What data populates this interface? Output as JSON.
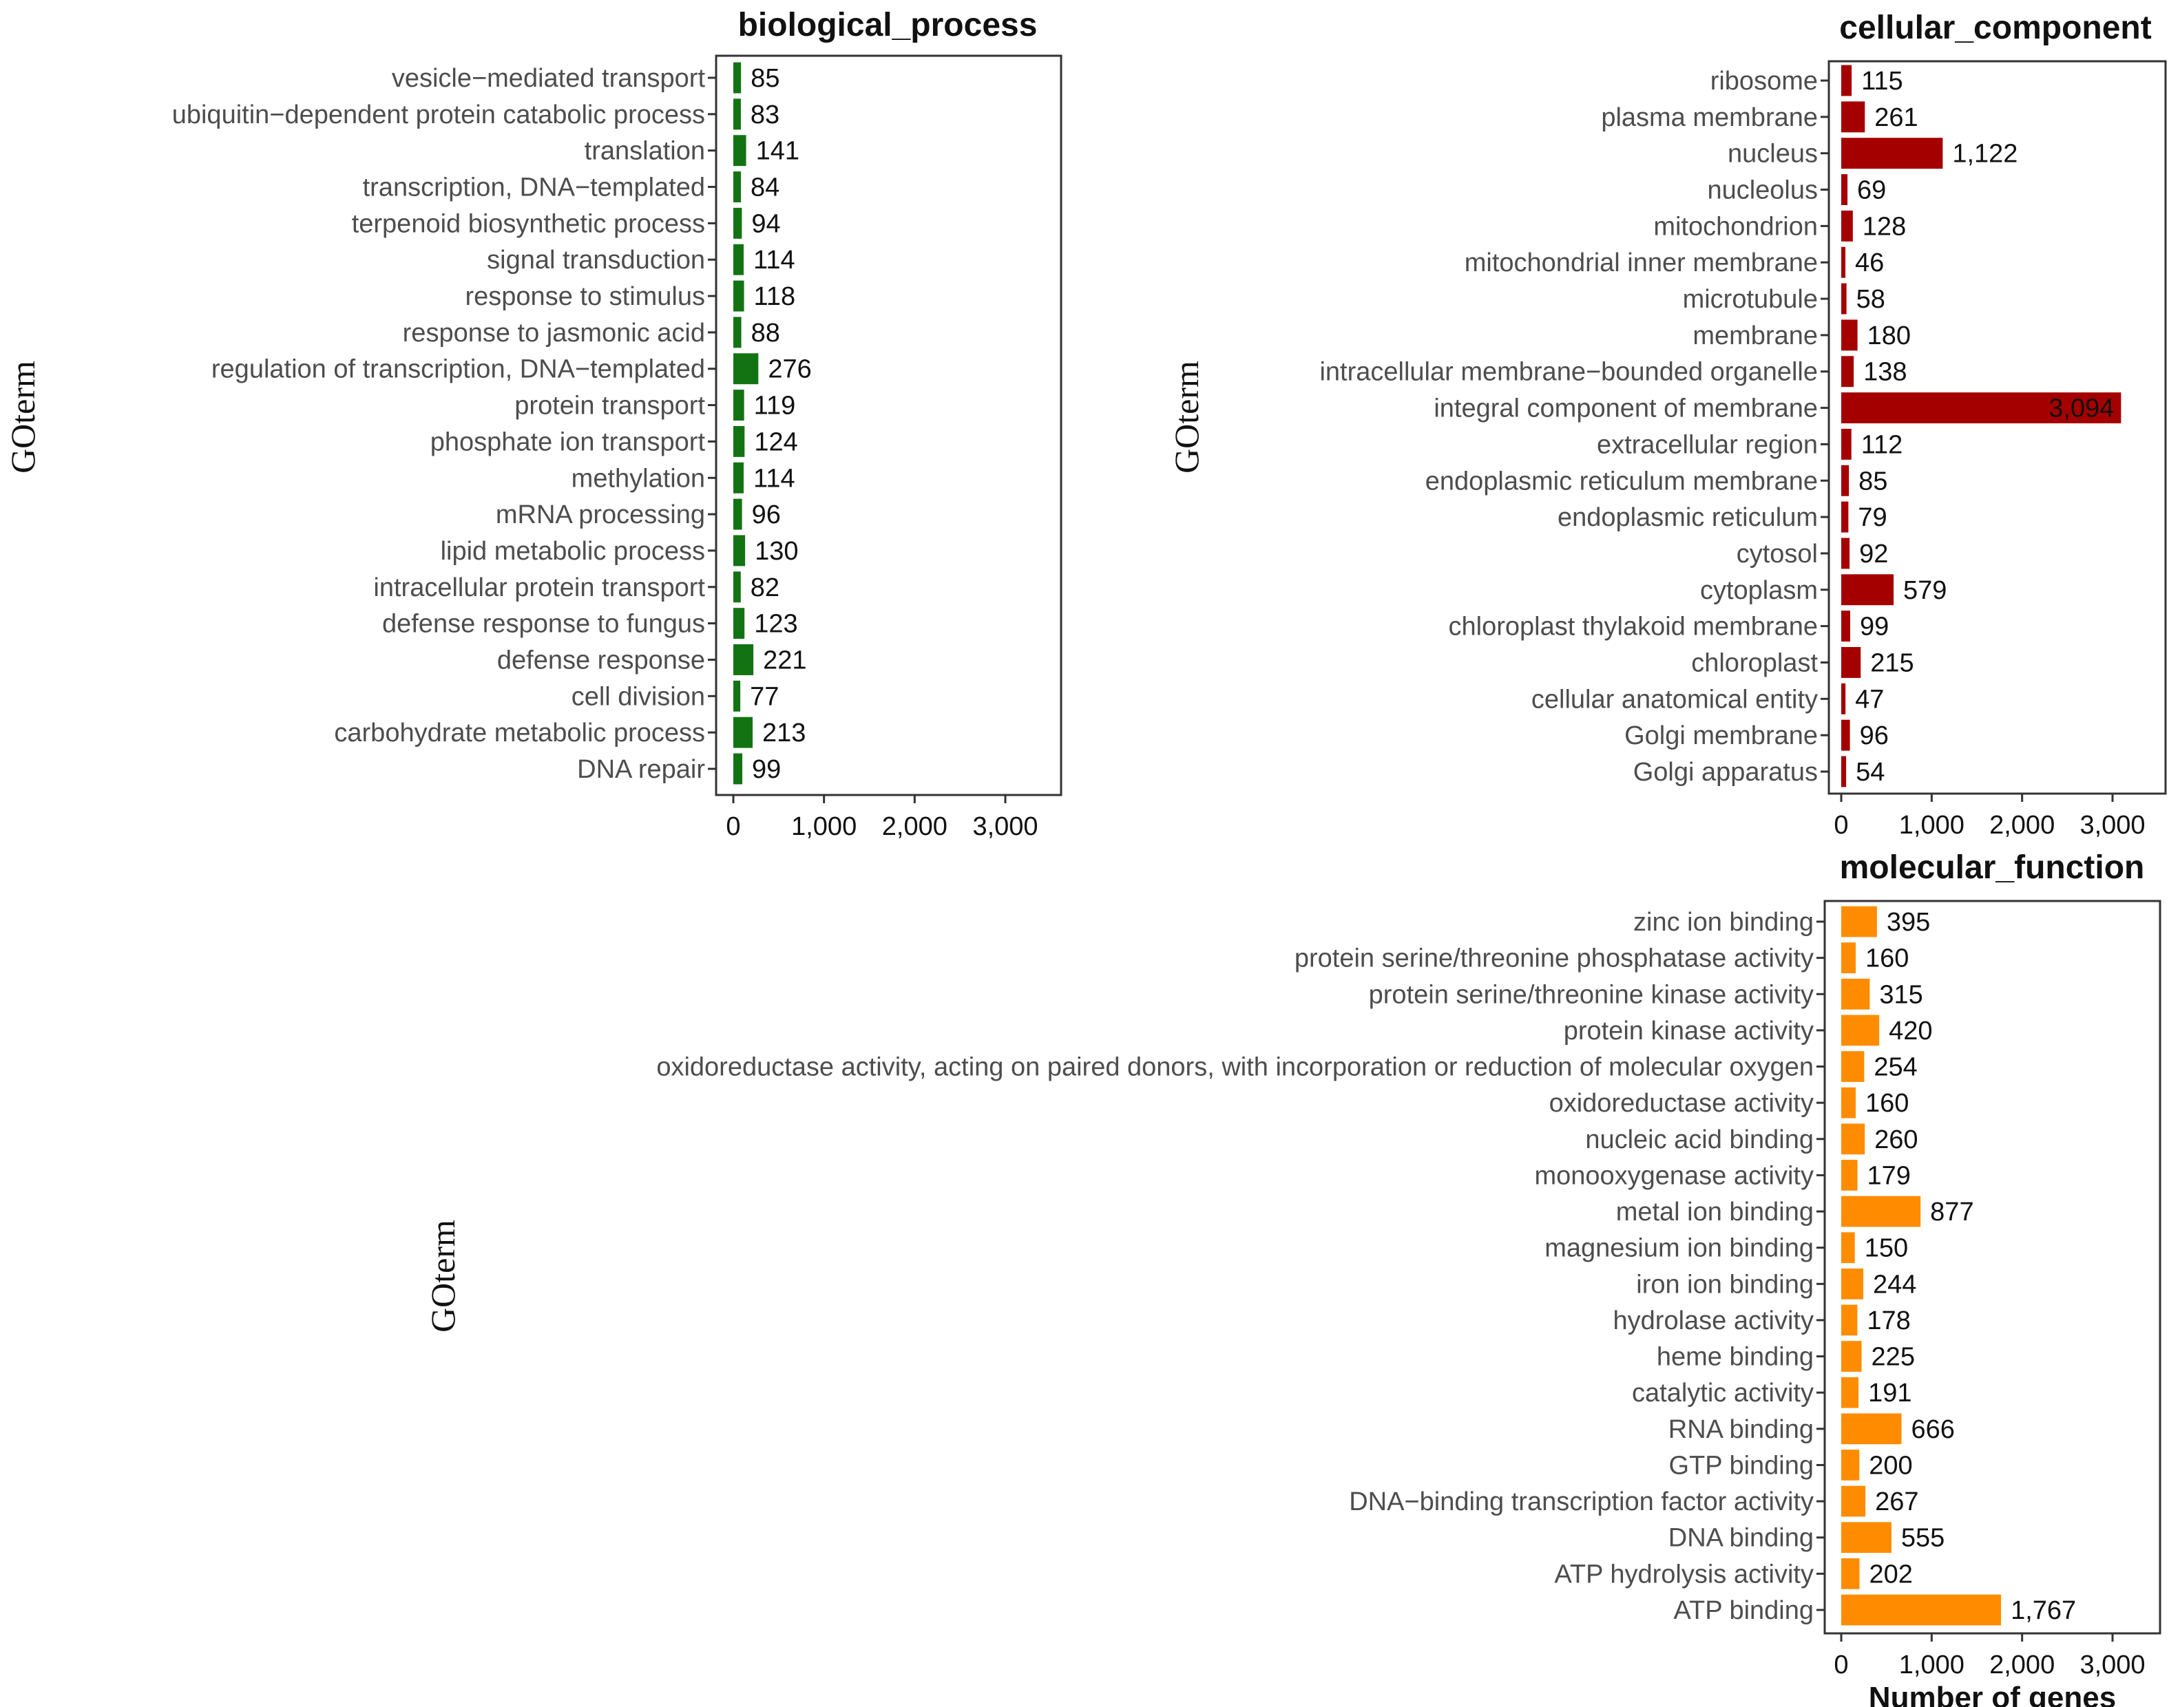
{
  "chart_data": [
    {
      "type": "bar",
      "orientation": "horizontal",
      "title": "biological_process",
      "xlabel": "",
      "ylabel": "GOterm",
      "xlim": [
        0,
        3600
      ],
      "xticks": [
        0,
        1000,
        2000,
        3000
      ],
      "color": "#137313",
      "categories": [
        "vesicle−mediated transport",
        "ubiquitin−dependent  protein catabolic process",
        "translation",
        "transcription, DNA−templated",
        "terpenoid biosynthetic process",
        "signal transduction",
        "response to stimulus",
        "response to jasmonic acid",
        "regulation of transcription, DNA−templated",
        "protein transport",
        "phosphate ion transport",
        "methylation",
        "mRNA processing",
        "lipid metabolic process",
        "intracellular protein transport",
        "defense response to fungus",
        "defense response",
        "cell division",
        "carbohydrate metabolic process",
        "DNA repair"
      ],
      "values": [
        85,
        83,
        141,
        84,
        94,
        114,
        118,
        88,
        276,
        119,
        124,
        114,
        96,
        130,
        82,
        123,
        221,
        77,
        213,
        99
      ]
    },
    {
      "type": "bar",
      "orientation": "horizontal",
      "title": "cellular_component",
      "xlabel": "",
      "ylabel": "GOterm",
      "xlim": [
        0,
        3600
      ],
      "xticks": [
        0,
        1000,
        2000,
        3000
      ],
      "color": "#a50000",
      "categories": [
        "ribosome",
        "plasma membrane",
        "nucleus",
        "nucleolus",
        "mitochondrion",
        "mitochondrial inner membrane",
        "microtubule",
        "membrane",
        "intracellular membrane−bounded organelle",
        "integral component of membrane",
        "extracellular region",
        "endoplasmic reticulum membrane",
        "endoplasmic reticulum",
        "cytosol",
        "cytoplasm",
        "chloroplast thylakoid membrane",
        "chloroplast",
        "cellular anatomical entity",
        "Golgi  membrane",
        "Golgi  apparatus"
      ],
      "values": [
        115,
        261,
        1122,
        69,
        128,
        46,
        58,
        180,
        138,
        3094,
        112,
        85,
        79,
        92,
        579,
        99,
        215,
        47,
        96,
        54
      ]
    },
    {
      "type": "bar",
      "orientation": "horizontal",
      "title": "molecular_function",
      "xlabel": "Number of genes",
      "ylabel": "GOterm",
      "xlim": [
        0,
        3600
      ],
      "xticks": [
        0,
        1000,
        2000,
        3000
      ],
      "color": "#ff8c00",
      "categories": [
        "zinc ion binding",
        "protein serine/threonine phosphatase activity",
        "protein serine/threonine kinase activity",
        "protein kinase activity",
        "oxidoreductase activity, acting on paired donors, with incorporation  or reduction of molecular oxygen",
        "oxidoreductase activity",
        "nucleic acid binding",
        "monooxygenase activity",
        "metal ion binding",
        "magnesium ion binding",
        "iron ion binding",
        "hydrolase activity",
        "heme binding",
        "catalytic activity",
        "RNA  binding",
        "GTP  binding",
        "DNA−binding  transcription factor activity",
        "DNA  binding",
        "ATP hydrolysis  activity",
        "ATP binding"
      ],
      "values": [
        395,
        160,
        315,
        420,
        254,
        160,
        260,
        179,
        877,
        150,
        244,
        178,
        225,
        191,
        666,
        200,
        267,
        555,
        202,
        1767
      ]
    }
  ]
}
